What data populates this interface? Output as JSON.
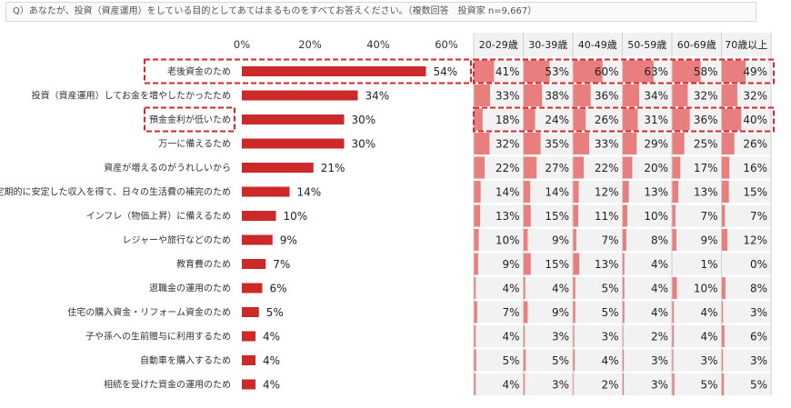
{
  "question": "Q）あなたが、投資（資産運用）をしている目的としてあてはまるものをすべてお答えください。（複数回答　投資家 n=9,667）",
  "colors": {
    "bar": "#cc2a2a",
    "heat": "#e87e7e",
    "cell_bg": "#f2f2f2",
    "highlight": "#d9242b"
  },
  "chart_data": {
    "type": "bar",
    "orientation": "horizontal",
    "xlim": [
      0,
      60
    ],
    "x_ticks": [
      "0%",
      "20%",
      "40%",
      "60%"
    ],
    "categories": [
      "老後資金のため",
      "投資（資産運用）してお金を増やしたかったため",
      "預金金利が低いため",
      "万一に備えるため",
      "資産が増えるのがうれしいから",
      "定期的に安定した収入を得て、日々の生活費の補完のため",
      "インフレ（物価上昇）に備えるため",
      "レジャーや旅行などのため",
      "教育費のため",
      "退職金の運用のため",
      "住宅の購入資金・リフォーム資金のため",
      "子や孫への生前贈与に利用するため",
      "自動車を購入するため",
      "相続を受けた資金の運用のため"
    ],
    "values": [
      54,
      34,
      30,
      30,
      21,
      14,
      10,
      9,
      7,
      6,
      5,
      4,
      4,
      4
    ],
    "highlighted": [
      "老後資金のため",
      "預金金利が低いため"
    ],
    "age_table": {
      "type": "table",
      "columns": [
        "20-29歳",
        "30-39歳",
        "40-49歳",
        "50-59歳",
        "60-69歳",
        "70歳以上"
      ],
      "rows": [
        [
          41,
          53,
          60,
          63,
          58,
          49
        ],
        [
          33,
          38,
          36,
          34,
          32,
          32
        ],
        [
          18,
          24,
          26,
          31,
          36,
          40
        ],
        [
          32,
          35,
          33,
          29,
          25,
          26
        ],
        [
          22,
          27,
          22,
          20,
          17,
          16
        ],
        [
          14,
          14,
          12,
          13,
          13,
          15
        ],
        [
          13,
          15,
          11,
          10,
          7,
          7
        ],
        [
          10,
          9,
          7,
          8,
          9,
          12
        ],
        [
          9,
          15,
          13,
          4,
          1,
          0
        ],
        [
          4,
          4,
          5,
          4,
          10,
          8
        ],
        [
          7,
          9,
          5,
          4,
          4,
          3
        ],
        [
          4,
          3,
          3,
          2,
          4,
          6
        ],
        [
          5,
          5,
          4,
          3,
          3,
          3
        ],
        [
          4,
          3,
          2,
          3,
          5,
          5
        ]
      ]
    }
  }
}
